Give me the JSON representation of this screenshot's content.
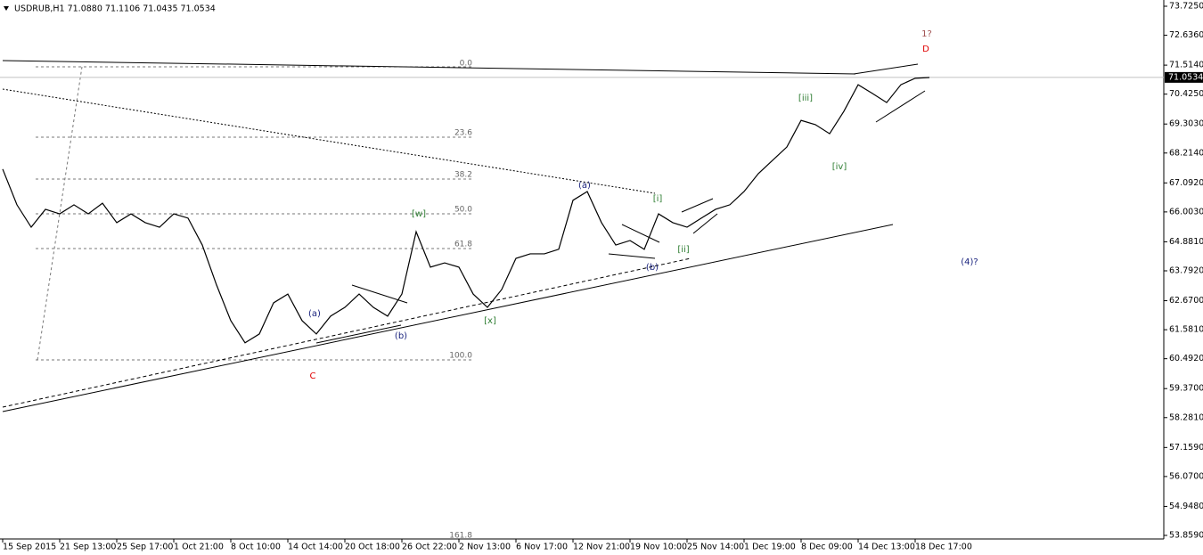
{
  "chart_data": {
    "type": "line",
    "title": "USDRUB,H1  71.0880 71.1106 71.0435 71.0534",
    "categories": [
      "15 Sep 2015",
      null,
      null,
      null,
      "21 Sep 13:00",
      null,
      null,
      null,
      "25 Sep 17:00",
      null,
      null,
      null,
      "1 Oct 21:00",
      null,
      null,
      null,
      "8 Oct 10:00",
      null,
      null,
      null,
      "14 Oct 14:00",
      null,
      null,
      null,
      "20 Oct 18:00",
      null,
      null,
      null,
      "26 Oct 22:00",
      null,
      null,
      null,
      "2 Nov 13:00",
      null,
      null,
      null,
      "6 Nov 17:00",
      null,
      null,
      null,
      "12 Nov 21:00",
      null,
      null,
      null,
      "19 Nov 10:00",
      null,
      null,
      null,
      "25 Nov 14:00",
      null,
      null,
      null,
      "1 Dec 19:00",
      null,
      null,
      null,
      "8 Dec 09:00",
      null,
      null,
      null,
      "14 Dec 13:00",
      null,
      null,
      null,
      "18 Dec 17:00",
      null
    ],
    "series": [
      {
        "name": "USDRUB",
        "color": "#000000",
        "values": [
          67.61,
          66.27,
          65.43,
          66.1,
          65.93,
          66.27,
          65.93,
          66.33,
          65.6,
          65.93,
          65.6,
          65.43,
          65.93,
          65.77,
          64.76,
          63.26,
          61.92,
          61.09,
          61.42,
          62.59,
          62.92,
          61.92,
          61.42,
          62.09,
          62.42,
          62.92,
          62.42,
          62.09,
          62.92,
          65.26,
          63.93,
          64.09,
          63.93,
          62.92,
          62.42,
          63.09,
          64.26,
          64.43,
          64.43,
          64.6,
          66.44,
          66.77,
          65.6,
          64.76,
          64.93,
          64.6,
          65.93,
          65.6,
          65.43,
          65.77,
          66.1,
          66.27,
          66.77,
          67.44,
          67.94,
          68.44,
          69.44,
          69.28,
          68.94,
          69.78,
          70.78,
          70.45,
          70.11,
          70.78,
          71.02,
          71.05
        ]
      }
    ],
    "ylim": [
      53.725,
      73.959
    ],
    "yticks": [
      {
        "value": 73.725,
        "label": "73.7250"
      },
      {
        "value": 72.636,
        "label": "72.6360"
      },
      {
        "value": 71.514,
        "label": "71.5140"
      },
      {
        "value": 70.425,
        "label": "70.4250"
      },
      {
        "value": 69.303,
        "label": "69.3030"
      },
      {
        "value": 68.214,
        "label": "68.2140"
      },
      {
        "value": 67.092,
        "label": "67.0920"
      },
      {
        "value": 66.003,
        "label": "66.0030"
      },
      {
        "value": 64.881,
        "label": "64.8810"
      },
      {
        "value": 63.792,
        "label": "63.7920"
      },
      {
        "value": 62.67,
        "label": "62.6700"
      },
      {
        "value": 61.581,
        "label": "61.5810"
      },
      {
        "value": 60.492,
        "label": "60.4920"
      },
      {
        "value": 59.37,
        "label": "59.3700"
      },
      {
        "value": 58.281,
        "label": "58.2810"
      },
      {
        "value": 57.159,
        "label": "57.1590"
      },
      {
        "value": 56.07,
        "label": "56.0700"
      },
      {
        "value": 54.948,
        "label": "54.9480"
      },
      {
        "value": 53.859,
        "label": "53.8590"
      }
    ],
    "current_price": 71.0534,
    "fib_levels": [
      "0.0",
      "23.6",
      "38.2",
      "50.0",
      "61.8",
      "100.0",
      "161.8"
    ],
    "annotations": [
      "1?",
      "D",
      "[iii]",
      "[iv]",
      "[i]",
      "[ii]",
      "(a)",
      "(b)",
      "[w]",
      "[x]",
      "(a)",
      "(b)",
      "C",
      "(4)?"
    ]
  }
}
